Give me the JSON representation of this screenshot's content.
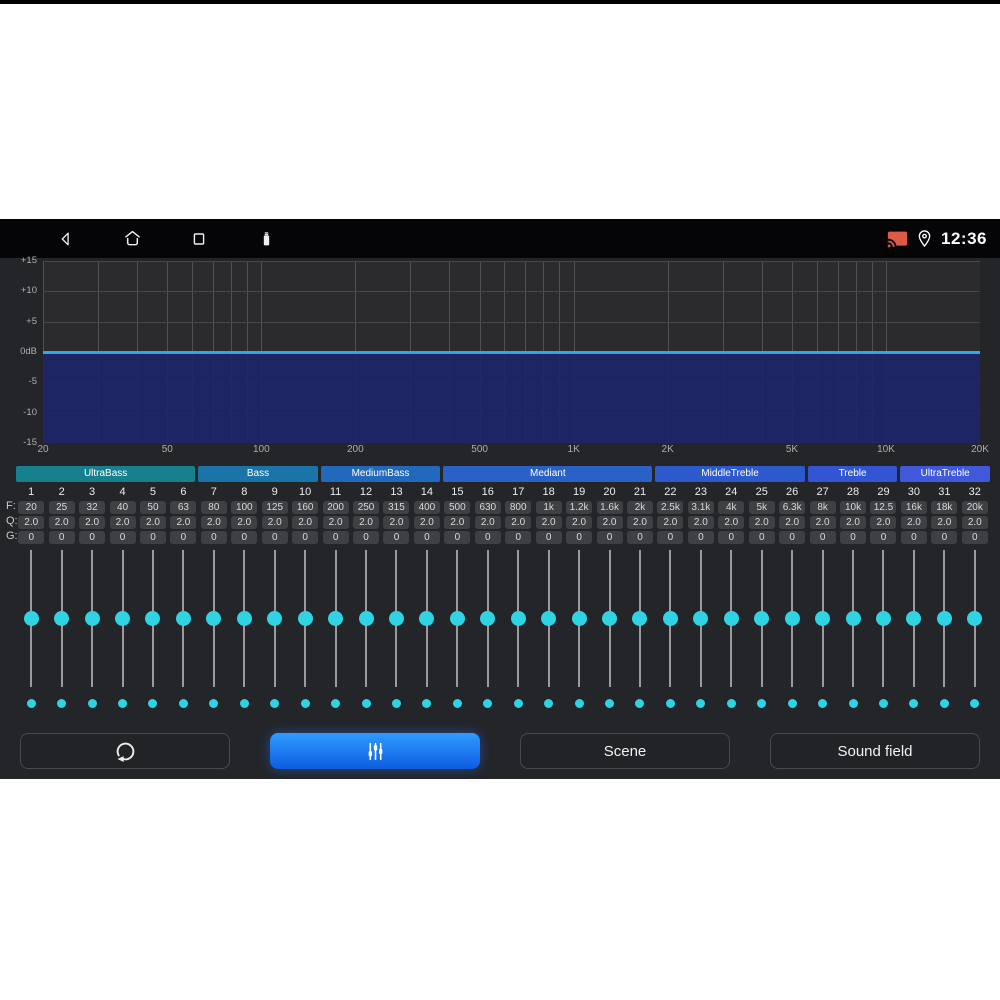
{
  "status_bar": {
    "time": "12:36",
    "left_icons": [
      "back-icon",
      "home-icon",
      "recents-icon",
      "usb-icon"
    ],
    "right_icons": [
      "cast-icon",
      "location-icon"
    ],
    "cast_icon_color": "#dd5b45"
  },
  "chart_data": {
    "type": "area",
    "description": "Equalizer frequency response, flat line at 0 dB with fill below",
    "x_scale": "log",
    "x_min": 20,
    "x_max": 20000,
    "y_min": -15,
    "y_max": 15,
    "grid": true,
    "y_ticks": [
      {
        "value": 15,
        "label": "+15"
      },
      {
        "value": 10,
        "label": "+10"
      },
      {
        "value": 5,
        "label": "+5"
      },
      {
        "value": 0,
        "label": "0dB"
      },
      {
        "value": -5,
        "label": "-5"
      },
      {
        "value": -10,
        "label": "-10"
      },
      {
        "value": -15,
        "label": "-15"
      }
    ],
    "x_ticks": [
      {
        "value": 20,
        "label": "20"
      },
      {
        "value": 50,
        "label": "50"
      },
      {
        "value": 100,
        "label": "100"
      },
      {
        "value": 200,
        "label": "200"
      },
      {
        "value": 500,
        "label": "500"
      },
      {
        "value": 1000,
        "label": "1K"
      },
      {
        "value": 2000,
        "label": "2K"
      },
      {
        "value": 5000,
        "label": "5K"
      },
      {
        "value": 10000,
        "label": "10K"
      },
      {
        "value": 20000,
        "label": "20K"
      }
    ],
    "x_gridlines": [
      20,
      30,
      40,
      50,
      60,
      70,
      80,
      90,
      100,
      200,
      300,
      400,
      500,
      600,
      700,
      800,
      900,
      1000,
      2000,
      3000,
      4000,
      5000,
      6000,
      7000,
      8000,
      9000,
      10000,
      20000
    ],
    "series": [
      {
        "name": "response",
        "x": [
          20,
          20000
        ],
        "y": [
          0,
          0
        ]
      }
    ],
    "line_color": "#2da9e9",
    "fill_color": "rgba(28,37,108,0.9)"
  },
  "equalizer": {
    "groups": [
      {
        "label": "UltraBass",
        "bands": 6,
        "color": "#16808e"
      },
      {
        "label": "Bass",
        "bands": 4,
        "color": "#1a74a8"
      },
      {
        "label": "MediumBass",
        "bands": 4,
        "color": "#2268bd"
      },
      {
        "label": "Mediant",
        "bands": 7,
        "color": "#2a61c7"
      },
      {
        "label": "MiddleTreble",
        "bands": 5,
        "color": "#2d59ce"
      },
      {
        "label": "Treble",
        "bands": 3,
        "color": "#3355d3"
      },
      {
        "label": "UltraTreble",
        "bands": 3,
        "color": "#3f58dc"
      }
    ],
    "row_labels": {
      "f": "F:",
      "q": "Q:",
      "g": "G:"
    },
    "knob_color": "#2fd4e4",
    "bands": [
      {
        "n": "1",
        "f": "20",
        "q": "2.0",
        "g": "0"
      },
      {
        "n": "2",
        "f": "25",
        "q": "2.0",
        "g": "0"
      },
      {
        "n": "3",
        "f": "32",
        "q": "2.0",
        "g": "0"
      },
      {
        "n": "4",
        "f": "40",
        "q": "2.0",
        "g": "0"
      },
      {
        "n": "5",
        "f": "50",
        "q": "2.0",
        "g": "0"
      },
      {
        "n": "6",
        "f": "63",
        "q": "2.0",
        "g": "0"
      },
      {
        "n": "7",
        "f": "80",
        "q": "2.0",
        "g": "0"
      },
      {
        "n": "8",
        "f": "100",
        "q": "2.0",
        "g": "0"
      },
      {
        "n": "9",
        "f": "125",
        "q": "2.0",
        "g": "0"
      },
      {
        "n": "10",
        "f": "160",
        "q": "2.0",
        "g": "0"
      },
      {
        "n": "11",
        "f": "200",
        "q": "2.0",
        "g": "0"
      },
      {
        "n": "12",
        "f": "250",
        "q": "2.0",
        "g": "0"
      },
      {
        "n": "13",
        "f": "315",
        "q": "2.0",
        "g": "0"
      },
      {
        "n": "14",
        "f": "400",
        "q": "2.0",
        "g": "0"
      },
      {
        "n": "15",
        "f": "500",
        "q": "2.0",
        "g": "0"
      },
      {
        "n": "16",
        "f": "630",
        "q": "2.0",
        "g": "0"
      },
      {
        "n": "17",
        "f": "800",
        "q": "2.0",
        "g": "0"
      },
      {
        "n": "18",
        "f": "1k",
        "q": "2.0",
        "g": "0"
      },
      {
        "n": "19",
        "f": "1.2k",
        "q": "2.0",
        "g": "0"
      },
      {
        "n": "20",
        "f": "1.6k",
        "q": "2.0",
        "g": "0"
      },
      {
        "n": "21",
        "f": "2k",
        "q": "2.0",
        "g": "0"
      },
      {
        "n": "22",
        "f": "2.5k",
        "q": "2.0",
        "g": "0"
      },
      {
        "n": "23",
        "f": "3.1k",
        "q": "2.0",
        "g": "0"
      },
      {
        "n": "24",
        "f": "4k",
        "q": "2.0",
        "g": "0"
      },
      {
        "n": "25",
        "f": "5k",
        "q": "2.0",
        "g": "0"
      },
      {
        "n": "26",
        "f": "6.3k",
        "q": "2.0",
        "g": "0"
      },
      {
        "n": "27",
        "f": "8k",
        "q": "2.0",
        "g": "0"
      },
      {
        "n": "28",
        "f": "10k",
        "q": "2.0",
        "g": "0"
      },
      {
        "n": "29",
        "f": "12.5",
        "q": "2.0",
        "g": "0"
      },
      {
        "n": "30",
        "f": "16k",
        "q": "2.0",
        "g": "0"
      },
      {
        "n": "31",
        "f": "18k",
        "q": "2.0",
        "g": "0"
      },
      {
        "n": "32",
        "f": "20k",
        "q": "2.0",
        "g": "0"
      }
    ]
  },
  "toolbar": {
    "reset_icon": "reset-icon",
    "eq_icon": "eq-sliders-icon",
    "eq_active": true,
    "scene_label": "Scene",
    "sound_field_label": "Sound field"
  }
}
